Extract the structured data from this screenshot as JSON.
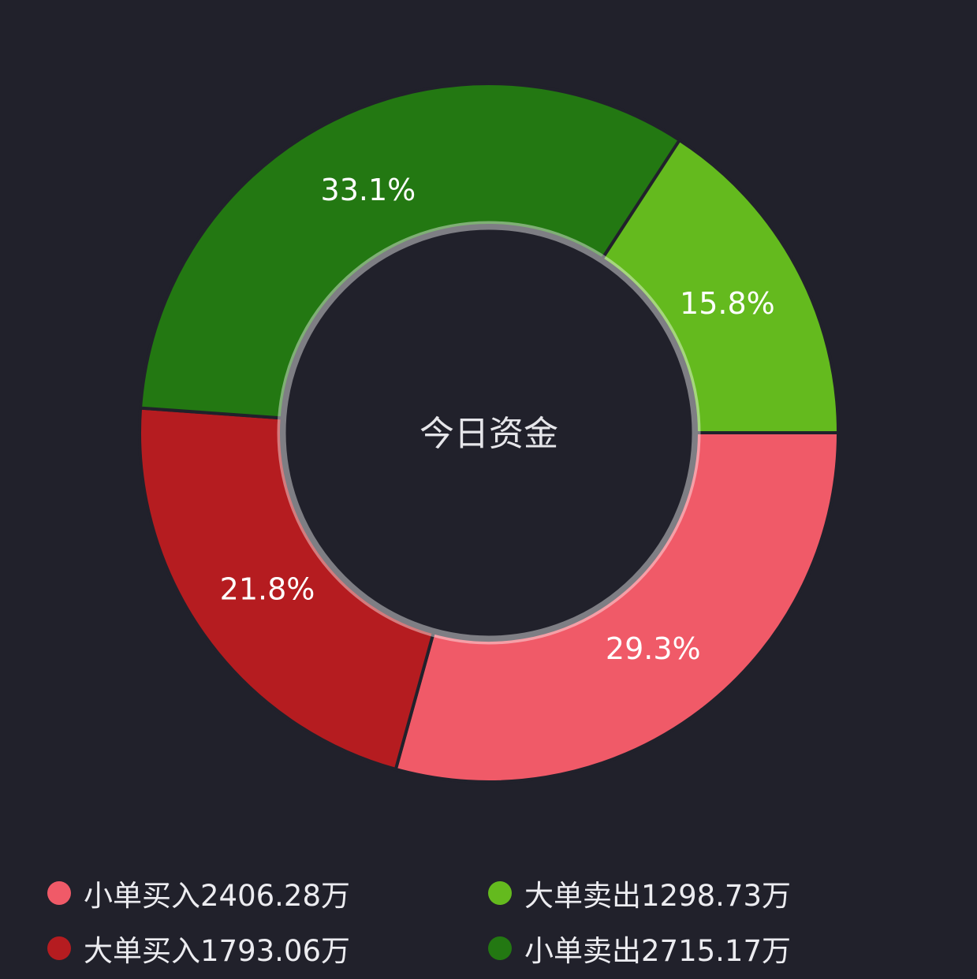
{
  "chart_data": {
    "type": "pie",
    "center_label": "今日资金",
    "slices": [
      {
        "label": "小单买入",
        "value": 2406.28,
        "unit": "万",
        "value_text": "2406.28",
        "percent": 29.3,
        "percent_label": "29.3%",
        "color": "#f05a68"
      },
      {
        "label": "大单买入",
        "value": 1793.06,
        "unit": "万",
        "value_text": "1793.06",
        "percent": 21.8,
        "percent_label": "21.8%",
        "color": "#b51c20"
      },
      {
        "label": "小单卖出",
        "value": 2715.17,
        "unit": "万",
        "value_text": "2715.17",
        "percent": 33.1,
        "percent_label": "33.1%",
        "color": "#237812"
      },
      {
        "label": "大单卖出",
        "value": 1298.73,
        "unit": "万",
        "value_text": "1298.73",
        "percent": 15.8,
        "percent_label": "15.8%",
        "color": "#64ba1e"
      }
    ],
    "legend": {
      "placement": "bottom",
      "items": [
        {
          "text": "小单买入2406.28万",
          "color": "#f05a68"
        },
        {
          "text": "大单卖出1298.73万",
          "color": "#64ba1e"
        },
        {
          "text": "大单买入1793.06万",
          "color": "#b51c20"
        },
        {
          "text": "小单卖出2715.17万",
          "color": "#237812"
        }
      ]
    }
  }
}
